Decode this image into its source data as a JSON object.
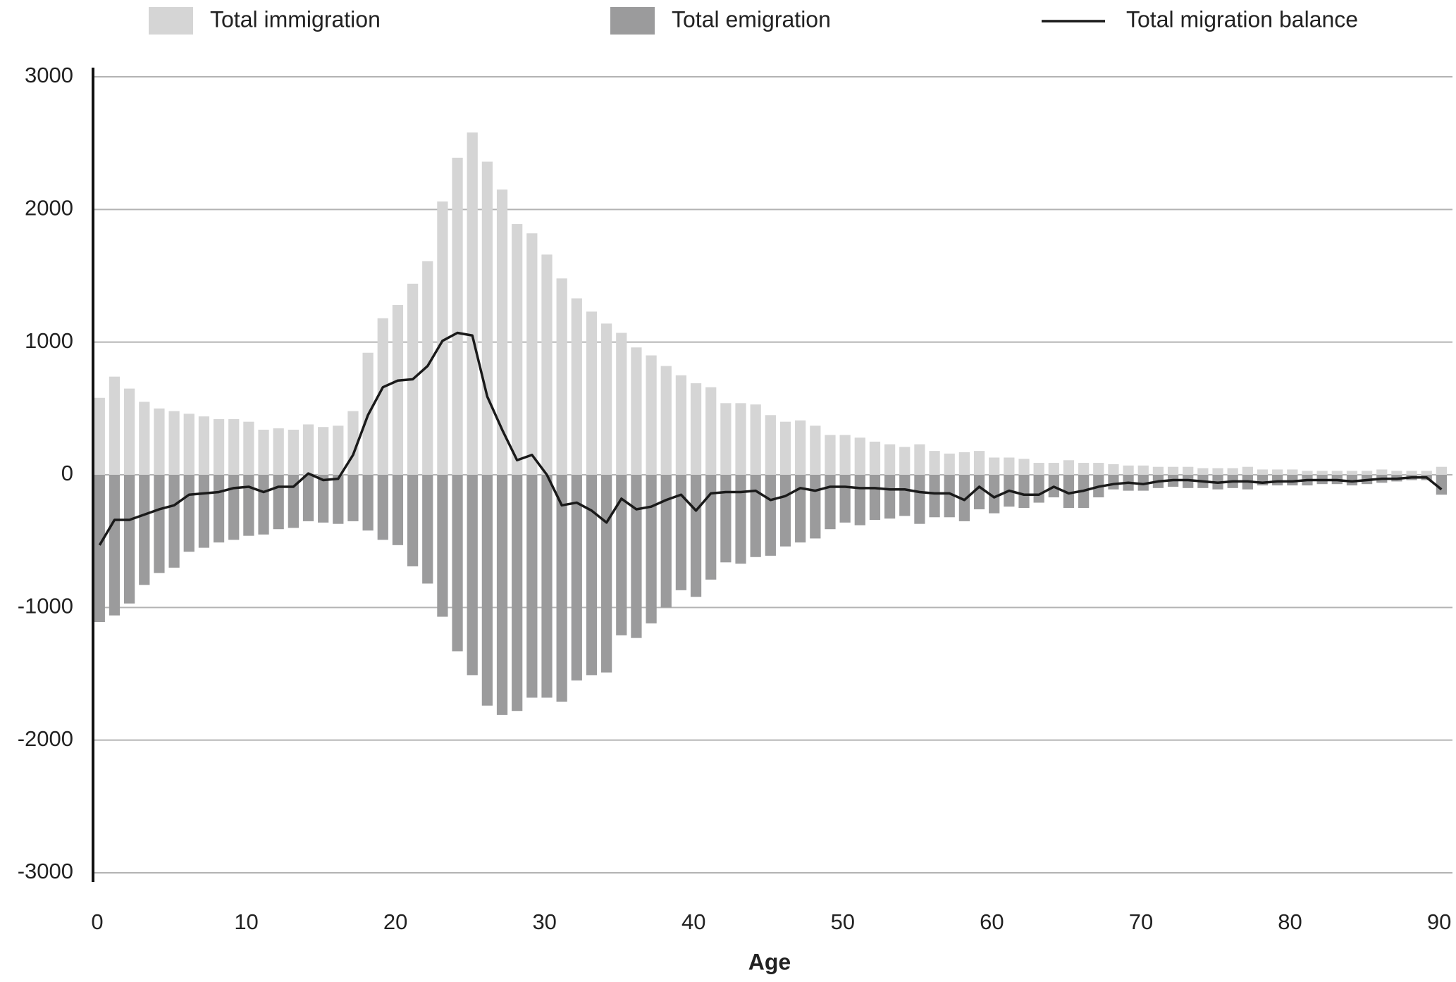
{
  "chart_data": {
    "type": "bar-line",
    "x_label": "Age",
    "x": [
      0,
      1,
      2,
      3,
      4,
      5,
      6,
      7,
      8,
      9,
      10,
      11,
      12,
      13,
      14,
      15,
      16,
      17,
      18,
      19,
      20,
      21,
      22,
      23,
      24,
      25,
      26,
      27,
      28,
      29,
      30,
      31,
      32,
      33,
      34,
      35,
      36,
      37,
      38,
      39,
      40,
      41,
      42,
      43,
      44,
      45,
      46,
      47,
      48,
      49,
      50,
      51,
      52,
      53,
      54,
      55,
      56,
      57,
      58,
      59,
      60,
      61,
      62,
      63,
      64,
      65,
      66,
      67,
      68,
      69,
      70,
      71,
      72,
      73,
      74,
      75,
      76,
      77,
      78,
      79,
      80,
      81,
      82,
      83,
      84,
      85,
      86,
      87,
      88,
      89,
      90
    ],
    "series": [
      {
        "name": "Total immigration",
        "kind": "bar",
        "color": "#d5d5d5",
        "values": [
          580,
          740,
          650,
          550,
          500,
          480,
          460,
          440,
          420,
          420,
          400,
          340,
          350,
          340,
          380,
          360,
          370,
          480,
          920,
          1180,
          1280,
          1440,
          1610,
          2060,
          2390,
          2580,
          2360,
          2150,
          1890,
          1820,
          1660,
          1480,
          1330,
          1230,
          1140,
          1070,
          960,
          900,
          820,
          750,
          690,
          660,
          540,
          540,
          530,
          450,
          400,
          410,
          370,
          300,
          300,
          280,
          250,
          230,
          210,
          230,
          180,
          160,
          170,
          180,
          130,
          130,
          120,
          90,
          90,
          110,
          90,
          90,
          80,
          70,
          70,
          60,
          60,
          60,
          50,
          50,
          50,
          60,
          40,
          40,
          40,
          30,
          30,
          30,
          30,
          30,
          40,
          30,
          30,
          30,
          60
        ]
      },
      {
        "name": "Total emigration",
        "kind": "bar",
        "color": "#9b9b9c",
        "values": [
          -1110,
          -1060,
          -970,
          -830,
          -740,
          -700,
          -580,
          -550,
          -510,
          -490,
          -460,
          -450,
          -410,
          -400,
          -350,
          -360,
          -370,
          -350,
          -420,
          -490,
          -530,
          -690,
          -820,
          -1070,
          -1330,
          -1510,
          -1740,
          -1810,
          -1780,
          -1680,
          -1680,
          -1710,
          -1550,
          -1510,
          -1490,
          -1210,
          -1230,
          -1120,
          -1000,
          -870,
          -920,
          -790,
          -660,
          -670,
          -620,
          -610,
          -540,
          -510,
          -480,
          -410,
          -360,
          -380,
          -340,
          -330,
          -310,
          -370,
          -320,
          -320,
          -350,
          -260,
          -290,
          -240,
          -250,
          -210,
          -170,
          -250,
          -250,
          -170,
          -110,
          -120,
          -120,
          -100,
          -90,
          -100,
          -100,
          -110,
          -100,
          -110,
          -80,
          -80,
          -80,
          -80,
          -70,
          -70,
          -80,
          -70,
          -60,
          -50,
          -40,
          -40,
          -150
        ]
      },
      {
        "name": "Total migration balance",
        "kind": "line",
        "color": "#1a1a1a",
        "values": [
          -530,
          -340,
          -340,
          -300,
          -260,
          -230,
          -150,
          -140,
          -130,
          -100,
          -90,
          -130,
          -90,
          -90,
          10,
          -40,
          -30,
          150,
          450,
          660,
          710,
          720,
          820,
          1010,
          1070,
          1050,
          590,
          340,
          110,
          150,
          0,
          -230,
          -210,
          -270,
          -360,
          -180,
          -260,
          -240,
          -190,
          -150,
          -270,
          -140,
          -130,
          -130,
          -120,
          -190,
          -160,
          -100,
          -120,
          -90,
          -90,
          -100,
          -100,
          -110,
          -110,
          -130,
          -140,
          -140,
          -190,
          -90,
          -170,
          -120,
          -150,
          -150,
          -90,
          -140,
          -120,
          -90,
          -70,
          -60,
          -70,
          -50,
          -40,
          -40,
          -50,
          -60,
          -50,
          -50,
          -60,
          -50,
          -50,
          -40,
          -40,
          -40,
          -50,
          -40,
          -30,
          -30,
          -20,
          -20,
          -110
        ]
      }
    ],
    "xlim": [
      0,
      90.8
    ],
    "xticks": [
      0,
      10,
      20,
      30,
      40,
      50,
      60,
      70,
      80,
      90
    ],
    "ylim": [
      -3000,
      3000
    ],
    "yticks": [
      -3000,
      -2000,
      -1000,
      0,
      1000,
      2000,
      3000
    ],
    "grid": true,
    "legend": "top"
  }
}
